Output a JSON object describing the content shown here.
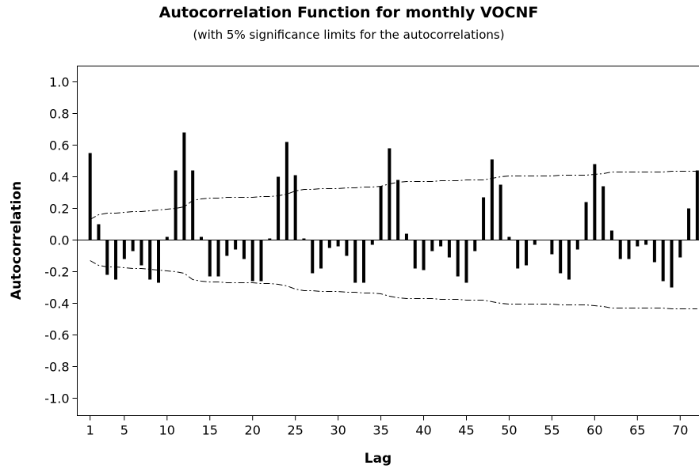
{
  "chart_data": {
    "type": "acf",
    "title": "Autocorrelation Function for monthly VOCNF",
    "subtitle": "(with 5% significance limits for the autocorrelations)",
    "x_label": "Lag",
    "y_label": "Autocorrelation",
    "x": [
      1,
      2,
      3,
      4,
      5,
      6,
      7,
      8,
      9,
      10,
      11,
      12,
      13,
      14,
      15,
      16,
      17,
      18,
      19,
      20,
      21,
      22,
      23,
      24,
      25,
      26,
      27,
      28,
      29,
      30,
      31,
      32,
      33,
      34,
      35,
      36,
      37,
      38,
      39,
      40,
      41,
      42,
      43,
      44,
      45,
      46,
      47,
      48,
      49,
      50,
      51,
      52,
      53,
      54,
      55,
      56,
      57,
      58,
      59,
      60,
      61,
      62,
      63,
      64,
      65,
      66,
      67,
      68,
      69,
      70,
      71,
      72
    ],
    "values": [
      0.55,
      0.1,
      -0.22,
      -0.25,
      -0.12,
      -0.07,
      -0.16,
      -0.25,
      -0.27,
      0.02,
      0.44,
      0.68,
      0.44,
      0.02,
      -0.23,
      -0.23,
      -0.1,
      -0.06,
      -0.12,
      -0.26,
      -0.26,
      0.01,
      0.4,
      0.62,
      0.41,
      0.01,
      -0.21,
      -0.18,
      -0.05,
      -0.04,
      -0.1,
      -0.27,
      -0.27,
      -0.03,
      0.34,
      0.58,
      0.38,
      0.04,
      -0.18,
      -0.19,
      -0.07,
      -0.04,
      -0.11,
      -0.23,
      -0.27,
      -0.07,
      0.27,
      0.51,
      0.35,
      0.02,
      -0.18,
      -0.16,
      -0.03,
      0.0,
      -0.09,
      -0.21,
      -0.25,
      -0.06,
      0.24,
      0.48,
      0.34,
      0.06,
      -0.12,
      -0.12,
      -0.04,
      -0.03,
      -0.14,
      -0.26,
      -0.3,
      -0.11,
      0.2,
      0.44
    ],
    "upper_limit": [
      0.13,
      0.16,
      0.17,
      0.17,
      0.175,
      0.18,
      0.18,
      0.185,
      0.19,
      0.195,
      0.2,
      0.21,
      0.25,
      0.26,
      0.265,
      0.265,
      0.27,
      0.27,
      0.27,
      0.27,
      0.275,
      0.275,
      0.28,
      0.29,
      0.31,
      0.32,
      0.32,
      0.325,
      0.325,
      0.325,
      0.33,
      0.33,
      0.335,
      0.335,
      0.34,
      0.355,
      0.365,
      0.37,
      0.37,
      0.37,
      0.37,
      0.375,
      0.375,
      0.375,
      0.38,
      0.38,
      0.38,
      0.39,
      0.4,
      0.405,
      0.405,
      0.405,
      0.405,
      0.405,
      0.405,
      0.41,
      0.41,
      0.41,
      0.41,
      0.415,
      0.42,
      0.43,
      0.43,
      0.43,
      0.43,
      0.43,
      0.43,
      0.43,
      0.435,
      0.435,
      0.435,
      0.435
    ],
    "lower_limit": [
      -0.13,
      -0.16,
      -0.17,
      -0.17,
      -0.175,
      -0.18,
      -0.18,
      -0.185,
      -0.19,
      -0.195,
      -0.2,
      -0.21,
      -0.25,
      -0.26,
      -0.265,
      -0.265,
      -0.27,
      -0.27,
      -0.27,
      -0.27,
      -0.275,
      -0.275,
      -0.28,
      -0.29,
      -0.31,
      -0.32,
      -0.32,
      -0.325,
      -0.325,
      -0.325,
      -0.33,
      -0.33,
      -0.335,
      -0.335,
      -0.34,
      -0.355,
      -0.365,
      -0.37,
      -0.37,
      -0.37,
      -0.37,
      -0.375,
      -0.375,
      -0.375,
      -0.38,
      -0.38,
      -0.38,
      -0.39,
      -0.4,
      -0.405,
      -0.405,
      -0.405,
      -0.405,
      -0.405,
      -0.405,
      -0.41,
      -0.41,
      -0.41,
      -0.41,
      -0.415,
      -0.42,
      -0.43,
      -0.43,
      -0.43,
      -0.43,
      -0.43,
      -0.43,
      -0.43,
      -0.435,
      -0.435,
      -0.435,
      -0.435
    ],
    "color": "#000000",
    "xlim": [
      -0.5,
      72.2
    ],
    "ylim": [
      -1.11,
      1.1
    ],
    "xticks": [
      1,
      5,
      10,
      15,
      20,
      25,
      30,
      35,
      40,
      45,
      50,
      55,
      60,
      65,
      70
    ],
    "yticks": [
      {
        "value": 1,
        "label": "1.0"
      },
      {
        "value": 0.8,
        "label": "0.8"
      },
      {
        "value": 0.6,
        "label": "0.6"
      },
      {
        "value": 0.4,
        "label": "0.4"
      },
      {
        "value": 0.2,
        "label": "0.2"
      },
      {
        "value": 0,
        "label": "0.0"
      },
      {
        "value": -0.2,
        "label": "-0.2"
      },
      {
        "value": -0.4,
        "label": "-0.4"
      },
      {
        "value": -0.6,
        "label": "-0.6"
      },
      {
        "value": -0.8,
        "label": "-0.8"
      },
      {
        "value": -1,
        "label": "-1.0"
      }
    ]
  }
}
